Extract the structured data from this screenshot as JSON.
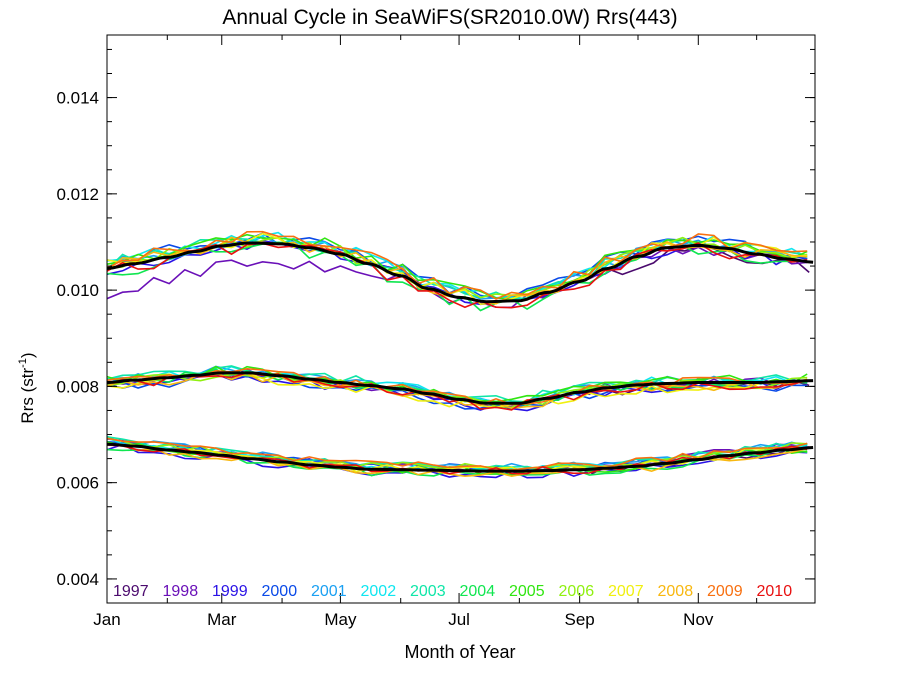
{
  "chart_data": {
    "type": "line",
    "title": "Annual Cycle in SeaWiFS(SR2010.0W) Rrs(443)",
    "xlabel": "Month of Year",
    "ylabel_main": "Rrs (str",
    "ylabel_sup": "-1",
    "ylabel_close": ")",
    "xlim": [
      1,
      365
    ],
    "ylim": [
      0.0035,
      0.0153
    ],
    "x_ticks": [
      {
        "label": "Jan",
        "day": 1
      },
      {
        "label": "Mar",
        "day": 60
      },
      {
        "label": "May",
        "day": 121
      },
      {
        "label": "Jul",
        "day": 182
      },
      {
        "label": "Sep",
        "day": 244
      },
      {
        "label": "Nov",
        "day": 305
      }
    ],
    "y_ticks": [
      {
        "label": "0.004",
        "value": 0.004
      },
      {
        "label": "0.006",
        "value": 0.006
      },
      {
        "label": "0.008",
        "value": 0.008
      },
      {
        "label": "0.010",
        "value": 0.01
      },
      {
        "label": "0.012",
        "value": 0.012
      },
      {
        "label": "0.014",
        "value": 0.014
      }
    ],
    "legend_placement": "bottom",
    "legend": [
      {
        "year": "1997",
        "color": "#4b0a6e"
      },
      {
        "year": "1998",
        "color": "#6a10b8"
      },
      {
        "year": "1999",
        "color": "#2a12e6"
      },
      {
        "year": "2000",
        "color": "#0a4ae8"
      },
      {
        "year": "2001",
        "color": "#1aa0f2"
      },
      {
        "year": "2002",
        "color": "#10e6f0"
      },
      {
        "year": "2003",
        "color": "#10e6a8"
      },
      {
        "year": "2004",
        "color": "#10e650"
      },
      {
        "year": "2005",
        "color": "#30e610"
      },
      {
        "year": "2006",
        "color": "#90f010"
      },
      {
        "year": "2007",
        "color": "#f0f010"
      },
      {
        "year": "2008",
        "color": "#f8b810"
      },
      {
        "year": "2009",
        "color": "#f87010"
      },
      {
        "year": "2010",
        "color": "#e81010"
      }
    ],
    "climatology_color": "#000000",
    "day_of_year": [
      1,
      15,
      32,
      46,
      60,
      74,
      91,
      105,
      121,
      135,
      152,
      166,
      182,
      196,
      213,
      227,
      244,
      258,
      274,
      288,
      305,
      319,
      335,
      349,
      365
    ],
    "series": [
      {
        "group": "upper",
        "climatology": [
          0.01045,
          0.01055,
          0.01068,
          0.0108,
          0.01092,
          0.01098,
          0.01096,
          0.01088,
          0.01075,
          0.01055,
          0.0103,
          0.01003,
          0.00985,
          0.00976,
          0.00978,
          0.00995,
          0.01018,
          0.01045,
          0.0107,
          0.01088,
          0.01093,
          0.01087,
          0.01075,
          0.01065,
          0.01058
        ],
        "spread": 0.00025,
        "outlier": {
          "year": "1998",
          "offset": -0.00045,
          "until_day": 140
        }
      },
      {
        "group": "middle",
        "climatology": [
          0.00808,
          0.00813,
          0.00818,
          0.00823,
          0.00828,
          0.00828,
          0.00822,
          0.00815,
          0.00808,
          0.00802,
          0.00795,
          0.00785,
          0.00773,
          0.00765,
          0.00765,
          0.00775,
          0.00788,
          0.00797,
          0.00803,
          0.00806,
          0.00808,
          0.00808,
          0.00808,
          0.0081,
          0.00812
        ],
        "spread": 0.00018
      },
      {
        "group": "lower",
        "climatology": [
          0.0068,
          0.00676,
          0.00668,
          0.00663,
          0.00657,
          0.0065,
          0.00643,
          0.00637,
          0.00632,
          0.00628,
          0.00627,
          0.00626,
          0.00625,
          0.00624,
          0.00624,
          0.00625,
          0.00627,
          0.0063,
          0.00634,
          0.0064,
          0.00648,
          0.00656,
          0.00662,
          0.00668,
          0.00673
        ],
        "spread": 0.00015
      }
    ]
  }
}
